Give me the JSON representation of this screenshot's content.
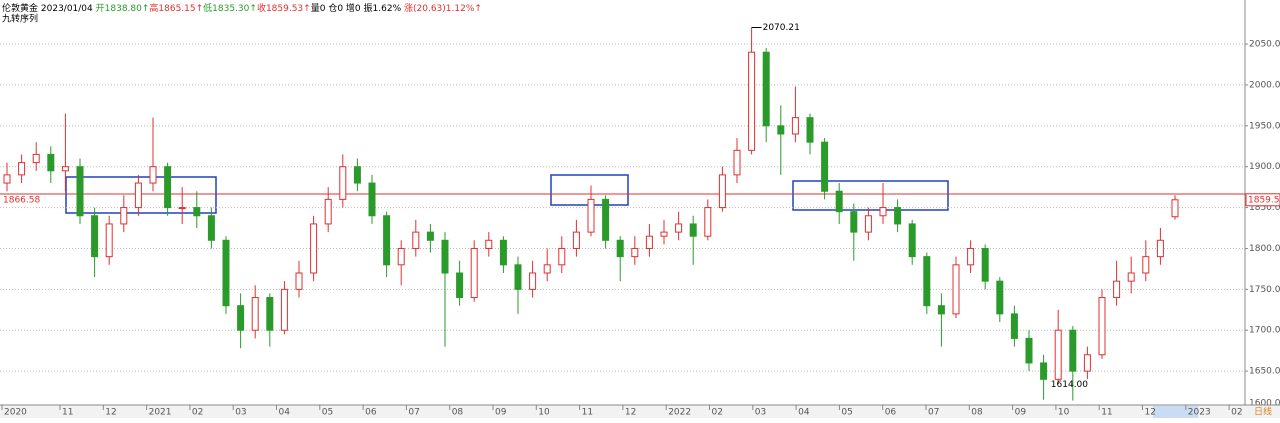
{
  "header": {
    "name": "伦敦黄金",
    "date": "2023/01/04",
    "open": "开1838.80↑",
    "high": "高1865.15↑",
    "low": "低1835.30↑",
    "close": "收1859.53↑",
    "volume": "量0",
    "position": "仓0",
    "increase": "增0",
    "amplitude": "振1.62%",
    "change": "涨(20.63)1.12%↑",
    "indicator": "九转序列"
  },
  "chart_data": {
    "type": "candlestick",
    "up_color": "#e03030",
    "down_color": "#2a9a2a",
    "ylim": [
      1600,
      2098
    ],
    "yticks": [
      {
        "value": 1600,
        "label": "1600.00"
      },
      {
        "value": 1650,
        "label": "1650.00"
      },
      {
        "value": 1700,
        "label": "1700.00"
      },
      {
        "value": 1750,
        "label": "1750.00"
      },
      {
        "value": 1800,
        "label": "1800.00"
      },
      {
        "value": 1850,
        "label": "1850.00"
      },
      {
        "value": 1900,
        "label": "1900.00"
      },
      {
        "value": 1950,
        "label": "1950.00"
      },
      {
        "value": 2000,
        "label": "2000.00"
      },
      {
        "value": 2050,
        "label": "2050.00"
      }
    ],
    "grid": true,
    "reference_line": {
      "value": 1866.58,
      "label": "1866.58",
      "color": "#e03030"
    },
    "low_annotation": {
      "value": 1614,
      "label": "1614.00"
    },
    "x_labels": [
      "2020",
      "11",
      "12",
      "2021",
      "02",
      "03",
      "04",
      "05",
      "06",
      "07",
      "08",
      "09",
      "10",
      "11",
      "12",
      "2022",
      "02",
      "03",
      "04",
      "05",
      "06",
      "07",
      "08",
      "09",
      "10",
      "11",
      "12",
      "2023",
      "02"
    ],
    "period": "日线",
    "candles": [
      [
        1880,
        1905,
        1870,
        1890
      ],
      [
        1890,
        1915,
        1880,
        1905
      ],
      [
        1905,
        1930,
        1895,
        1915
      ],
      [
        1915,
        1925,
        1880,
        1895
      ],
      [
        1895,
        1965,
        1870,
        1900
      ],
      [
        1900,
        1910,
        1830,
        1840
      ],
      [
        1840,
        1850,
        1765,
        1790
      ],
      [
        1790,
        1840,
        1780,
        1830
      ],
      [
        1830,
        1865,
        1820,
        1850
      ],
      [
        1850,
        1890,
        1840,
        1880
      ],
      [
        1880,
        1960,
        1870,
        1900
      ],
      [
        1900,
        1905,
        1840,
        1850
      ],
      [
        1850,
        1875,
        1830,
        1850
      ],
      [
        1850,
        1870,
        1825,
        1840
      ],
      [
        1840,
        1850,
        1800,
        1810
      ],
      [
        1810,
        1815,
        1720,
        1730
      ],
      [
        1730,
        1745,
        1678,
        1700
      ],
      [
        1700,
        1755,
        1690,
        1740
      ],
      [
        1740,
        1745,
        1680,
        1700
      ],
      [
        1700,
        1760,
        1695,
        1750
      ],
      [
        1750,
        1785,
        1740,
        1770
      ],
      [
        1770,
        1840,
        1760,
        1830
      ],
      [
        1830,
        1875,
        1820,
        1860
      ],
      [
        1860,
        1915,
        1850,
        1900
      ],
      [
        1900,
        1910,
        1870,
        1880
      ],
      [
        1880,
        1890,
        1830,
        1840
      ],
      [
        1840,
        1845,
        1765,
        1780
      ],
      [
        1780,
        1810,
        1755,
        1800
      ],
      [
        1800,
        1835,
        1790,
        1820
      ],
      [
        1820,
        1830,
        1795,
        1810
      ],
      [
        1810,
        1820,
        1680,
        1770
      ],
      [
        1770,
        1785,
        1730,
        1740
      ],
      [
        1740,
        1810,
        1735,
        1800
      ],
      [
        1800,
        1820,
        1790,
        1810
      ],
      [
        1810,
        1815,
        1770,
        1780
      ],
      [
        1780,
        1790,
        1720,
        1750
      ],
      [
        1750,
        1785,
        1740,
        1770
      ],
      [
        1770,
        1800,
        1760,
        1780
      ],
      [
        1780,
        1815,
        1770,
        1800
      ],
      [
        1800,
        1835,
        1790,
        1820
      ],
      [
        1820,
        1877,
        1815,
        1860
      ],
      [
        1860,
        1865,
        1800,
        1810
      ],
      [
        1810,
        1815,
        1760,
        1790
      ],
      [
        1790,
        1815,
        1780,
        1800
      ],
      [
        1800,
        1830,
        1790,
        1815
      ],
      [
        1815,
        1835,
        1805,
        1820
      ],
      [
        1820,
        1845,
        1810,
        1830
      ],
      [
        1830,
        1840,
        1780,
        1815
      ],
      [
        1815,
        1860,
        1810,
        1850
      ],
      [
        1850,
        1900,
        1845,
        1890
      ],
      [
        1890,
        1935,
        1880,
        1920
      ],
      [
        1920,
        2070.21,
        1915,
        2040
      ],
      [
        2040,
        2045,
        1930,
        1950
      ],
      [
        1950,
        1975,
        1890,
        1940
      ],
      [
        1940,
        1998,
        1930,
        1960
      ],
      [
        1960,
        1965,
        1915,
        1930
      ],
      [
        1930,
        1935,
        1860,
        1870
      ],
      [
        1870,
        1880,
        1830,
        1845
      ],
      [
        1845,
        1855,
        1785,
        1820
      ],
      [
        1820,
        1850,
        1810,
        1840
      ],
      [
        1840,
        1880,
        1830,
        1850
      ],
      [
        1850,
        1860,
        1820,
        1830
      ],
      [
        1830,
        1835,
        1780,
        1790
      ],
      [
        1790,
        1795,
        1720,
        1730
      ],
      [
        1730,
        1745,
        1680,
        1720
      ],
      [
        1720,
        1790,
        1715,
        1780
      ],
      [
        1780,
        1810,
        1770,
        1800
      ],
      [
        1800,
        1805,
        1750,
        1760
      ],
      [
        1760,
        1765,
        1710,
        1720
      ],
      [
        1720,
        1730,
        1680,
        1690
      ],
      [
        1690,
        1700,
        1650,
        1660
      ],
      [
        1660,
        1670,
        1615,
        1640
      ],
      [
        1640,
        1725,
        1635,
        1700
      ],
      [
        1700,
        1705,
        1614,
        1650
      ],
      [
        1650,
        1680,
        1640,
        1670
      ],
      [
        1670,
        1750,
        1665,
        1740
      ],
      [
        1740,
        1785,
        1730,
        1760
      ],
      [
        1760,
        1790,
        1745,
        1770
      ],
      [
        1770,
        1810,
        1760,
        1790
      ],
      [
        1790,
        1825,
        1780,
        1810
      ],
      [
        1838.8,
        1865.15,
        1835.3,
        1859.53
      ]
    ]
  }
}
